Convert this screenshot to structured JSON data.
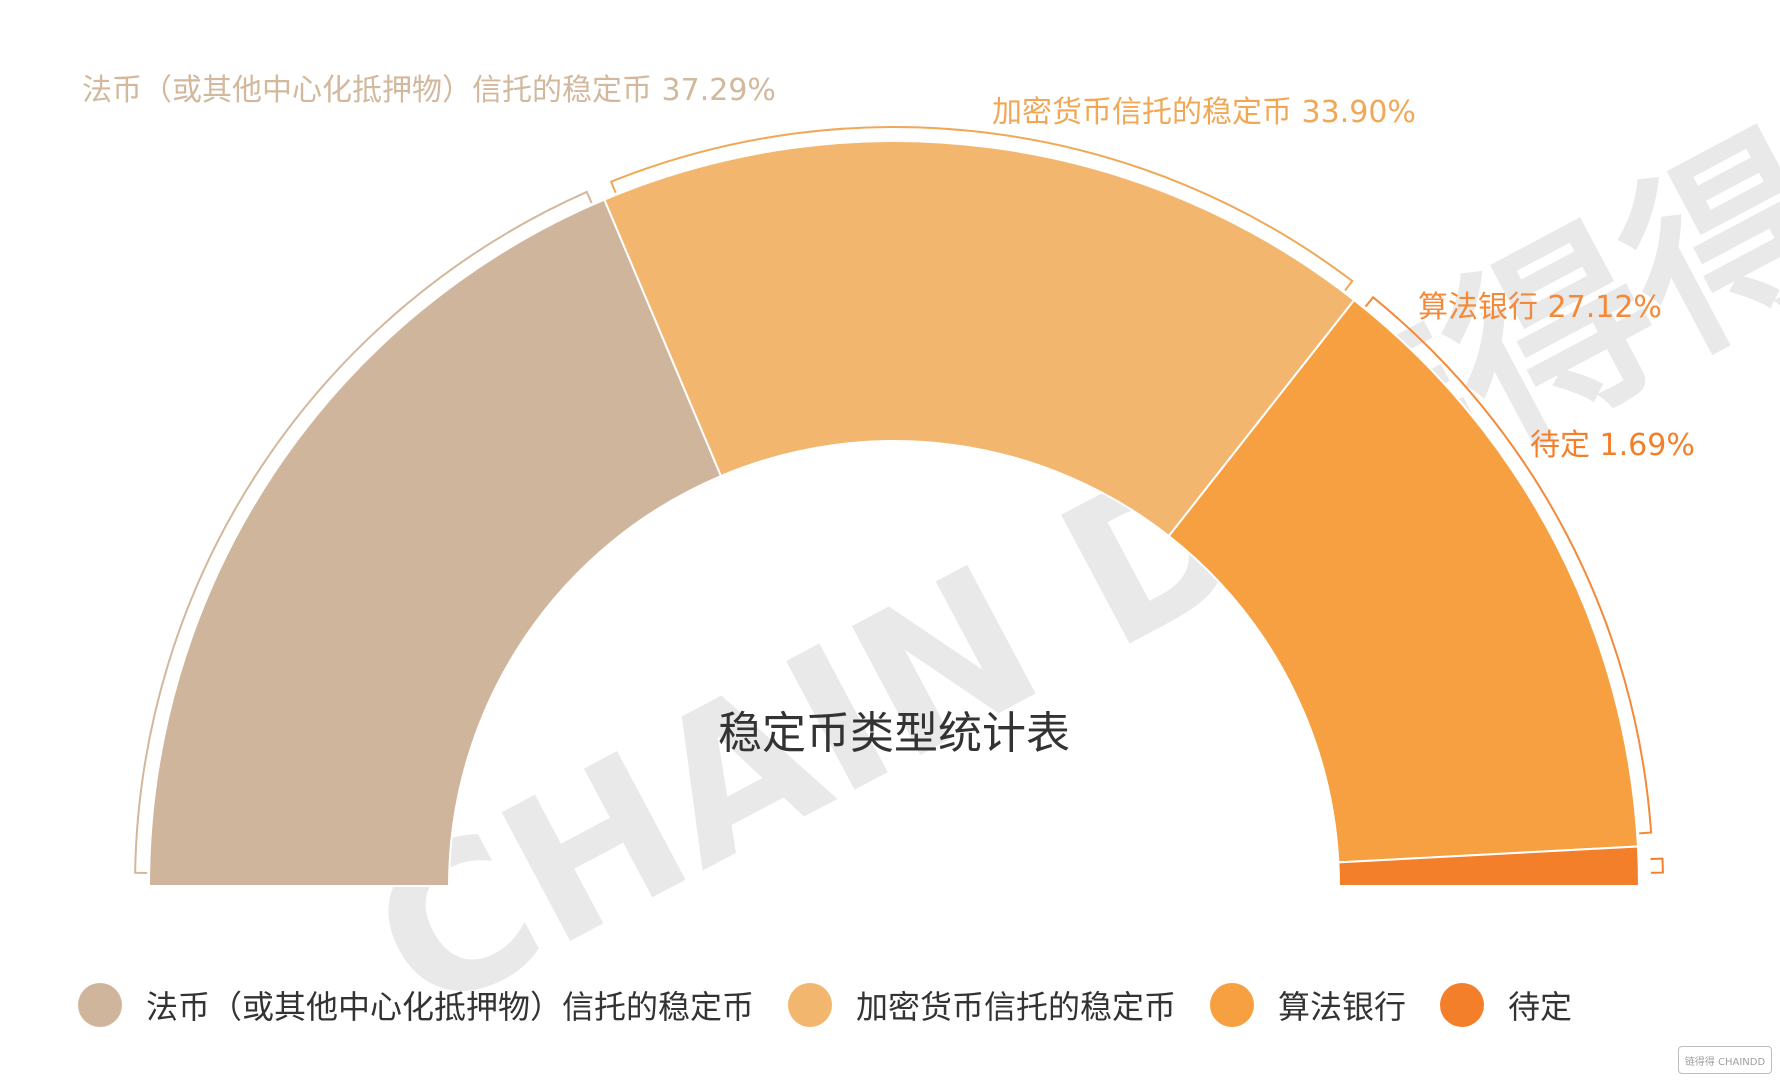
{
  "chart_data": {
    "type": "pie",
    "variant": "semicircle-donut",
    "title": "稳定币类型统计表",
    "categories": [
      "法币（或其他中心化抵押物）信托的稳定币",
      "加密货币信托的稳定币",
      "算法银行",
      "待定"
    ],
    "values": [
      37.29,
      33.9,
      27.12,
      1.69
    ],
    "labels": [
      "法币（或其他中心化抵押物）信托的稳定币 37.29%",
      "加密货币信托的稳定币 33.90%",
      "算法银行 27.12%",
      "待定 1.69%"
    ],
    "colors": [
      "#cfb59b",
      "#f3b66f",
      "#f6a041",
      "#f47f2a"
    ],
    "label_colors": [
      "#d2b89c",
      "#f0a857",
      "#f4893a",
      "#f47f2a"
    ],
    "legend_position": "bottom",
    "watermark": "CHAIN D 链得得",
    "corner_logo": "链得得 CHAINDD"
  }
}
